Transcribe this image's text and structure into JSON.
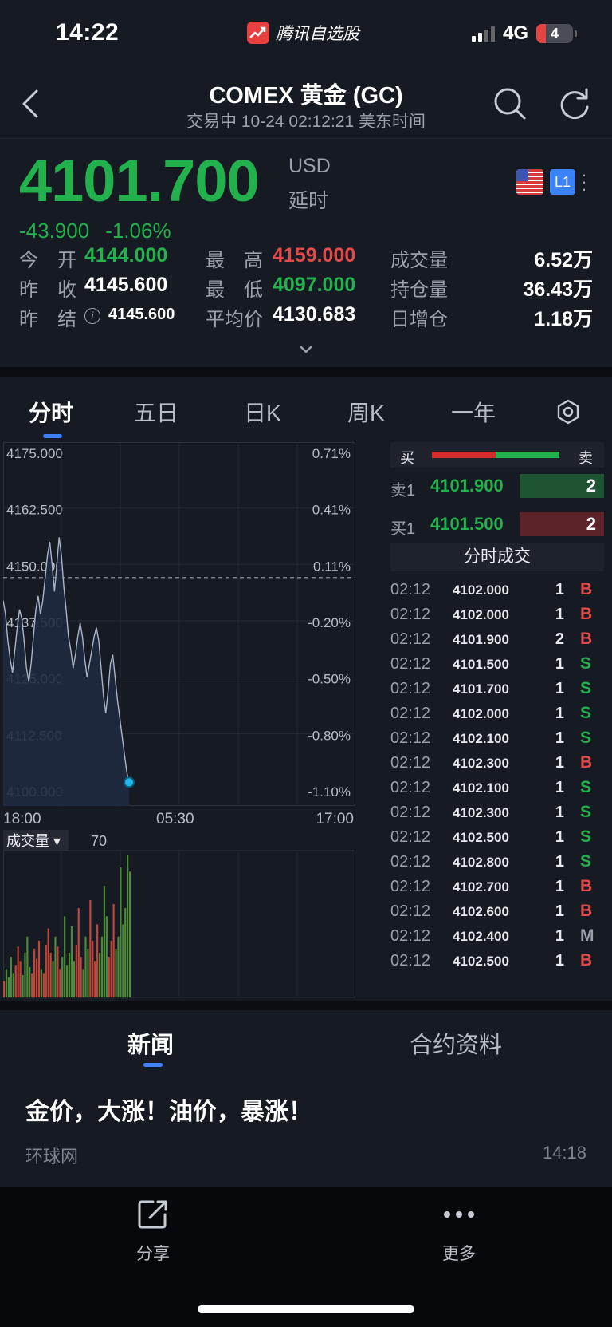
{
  "status_bar": {
    "time": "14:22",
    "app_name": "腾讯自选股",
    "network": "4G",
    "battery": "4"
  },
  "header": {
    "title": "COMEX 黄金 (GC)",
    "subtitle": "交易中   10-24 02:12:21 美东时间",
    "icons": [
      "chevron-left-icon",
      "search-icon",
      "refresh-icon"
    ]
  },
  "quote": {
    "price": "4101.700",
    "currency": "USD",
    "delay": "延时",
    "change": "-43.900",
    "change_pct": "-1.06%",
    "badge": "L1",
    "colors": {
      "down": "#22b14c",
      "up": "#e24a4a"
    },
    "stats": [
      [
        {
          "label": "今　开",
          "value": "4144.000",
          "color": "green"
        },
        {
          "label": "最　高",
          "value": "4159.000",
          "color": "red"
        },
        {
          "label": "成交量",
          "value": "6.52万",
          "color": "white"
        }
      ],
      [
        {
          "label": "昨　收",
          "value": "4145.600",
          "color": "white"
        },
        {
          "label": "最　低",
          "value": "4097.000",
          "color": "green"
        },
        {
          "label": "持仓量",
          "value": "36.43万",
          "color": "white"
        }
      ],
      [
        {
          "label": "昨　结",
          "value": "4145.600",
          "color": "white"
        },
        {
          "label": "平均价",
          "value": "4130.683",
          "color": "white"
        },
        {
          "label": "日增仓",
          "value": "1.18万",
          "color": "white"
        }
      ]
    ]
  },
  "tabs": [
    "分时",
    "五日",
    "日K",
    "周K",
    "一年"
  ],
  "chart": {
    "y_labels": [
      "4175.000",
      "4162.500",
      "4150.000",
      "4137.500",
      "4125.000",
      "4112.500",
      "4100.000"
    ],
    "pct_labels": [
      "0.71%",
      "0.41%",
      "0.11%",
      "-0.20%",
      "-0.50%",
      "-0.80%",
      "-1.10%"
    ],
    "x_labels": [
      "18:00",
      "05:30",
      "17:00"
    ],
    "volume_label": "成交量",
    "volume_value": "70"
  },
  "chart_data": {
    "type": "line",
    "ylim": [
      4100,
      4175
    ],
    "prev_settle": 4145.6,
    "x_axis": [
      "18:00",
      "05:30",
      "17:00"
    ],
    "series": [
      {
        "values": [
          4142,
          4139,
          4133,
          4129,
          4126,
          4131,
          4136,
          4140,
          4138,
          4133,
          4127,
          4124,
          4128,
          4134,
          4140,
          4143,
          4139,
          4142,
          4147,
          4152,
          4155,
          4150,
          4144,
          4150,
          4156,
          4152,
          4145,
          4140,
          4134,
          4131,
          4127,
          4130,
          4134,
          4137,
          4134,
          4129,
          4125,
          4128,
          4131,
          4134,
          4136,
          4133,
          4127,
          4121,
          4117,
          4122,
          4128,
          4130,
          4125,
          4120,
          4116,
          4112,
          4108,
          4104,
          4101.7
        ]
      }
    ],
    "volume": [
      8,
      14,
      10,
      20,
      12,
      16,
      25,
      18,
      11,
      22,
      30,
      15,
      12,
      24,
      19,
      28,
      14,
      12,
      26,
      34,
      22,
      18,
      30,
      25,
      14,
      20,
      40,
      16,
      22,
      35,
      18,
      26,
      44,
      20,
      14,
      30,
      24,
      48,
      28,
      18,
      36,
      22,
      30,
      55,
      40,
      20,
      28,
      46,
      24,
      30,
      64,
      36,
      44,
      70,
      62
    ]
  },
  "orderbook": {
    "buy_label": "买",
    "sell_label": "卖",
    "ask": {
      "label": "卖1",
      "price": "4101.900",
      "qty": "2"
    },
    "bid": {
      "label": "买1",
      "price": "4101.500",
      "qty": "2"
    },
    "trades_header": "分时成交",
    "trades": [
      {
        "time": "02:12",
        "price": "4102.000",
        "vol": "1",
        "side": "B"
      },
      {
        "time": "02:12",
        "price": "4102.000",
        "vol": "1",
        "side": "B"
      },
      {
        "time": "02:12",
        "price": "4101.900",
        "vol": "2",
        "side": "B"
      },
      {
        "time": "02:12",
        "price": "4101.500",
        "vol": "1",
        "side": "S"
      },
      {
        "time": "02:12",
        "price": "4101.700",
        "vol": "1",
        "side": "S"
      },
      {
        "time": "02:12",
        "price": "4102.000",
        "vol": "1",
        "side": "S"
      },
      {
        "time": "02:12",
        "price": "4102.100",
        "vol": "1",
        "side": "S"
      },
      {
        "time": "02:12",
        "price": "4102.300",
        "vol": "1",
        "side": "B"
      },
      {
        "time": "02:12",
        "price": "4102.100",
        "vol": "1",
        "side": "S"
      },
      {
        "time": "02:12",
        "price": "4102.300",
        "vol": "1",
        "side": "S"
      },
      {
        "time": "02:12",
        "price": "4102.500",
        "vol": "1",
        "side": "S"
      },
      {
        "time": "02:12",
        "price": "4102.800",
        "vol": "1",
        "side": "S"
      },
      {
        "time": "02:12",
        "price": "4102.700",
        "vol": "1",
        "side": "B"
      },
      {
        "time": "02:12",
        "price": "4102.600",
        "vol": "1",
        "side": "B"
      },
      {
        "time": "02:12",
        "price": "4102.400",
        "vol": "1",
        "side": "M"
      },
      {
        "time": "02:12",
        "price": "4102.500",
        "vol": "1",
        "side": "B"
      }
    ]
  },
  "news": {
    "tabs": [
      "新闻",
      "合约资料"
    ],
    "items": [
      {
        "title": "金价，大涨！油价，暴涨！",
        "source": "环球网",
        "time": "14:18"
      }
    ]
  },
  "bottom_bar": {
    "share_label": "分享",
    "more_label": "更多"
  }
}
